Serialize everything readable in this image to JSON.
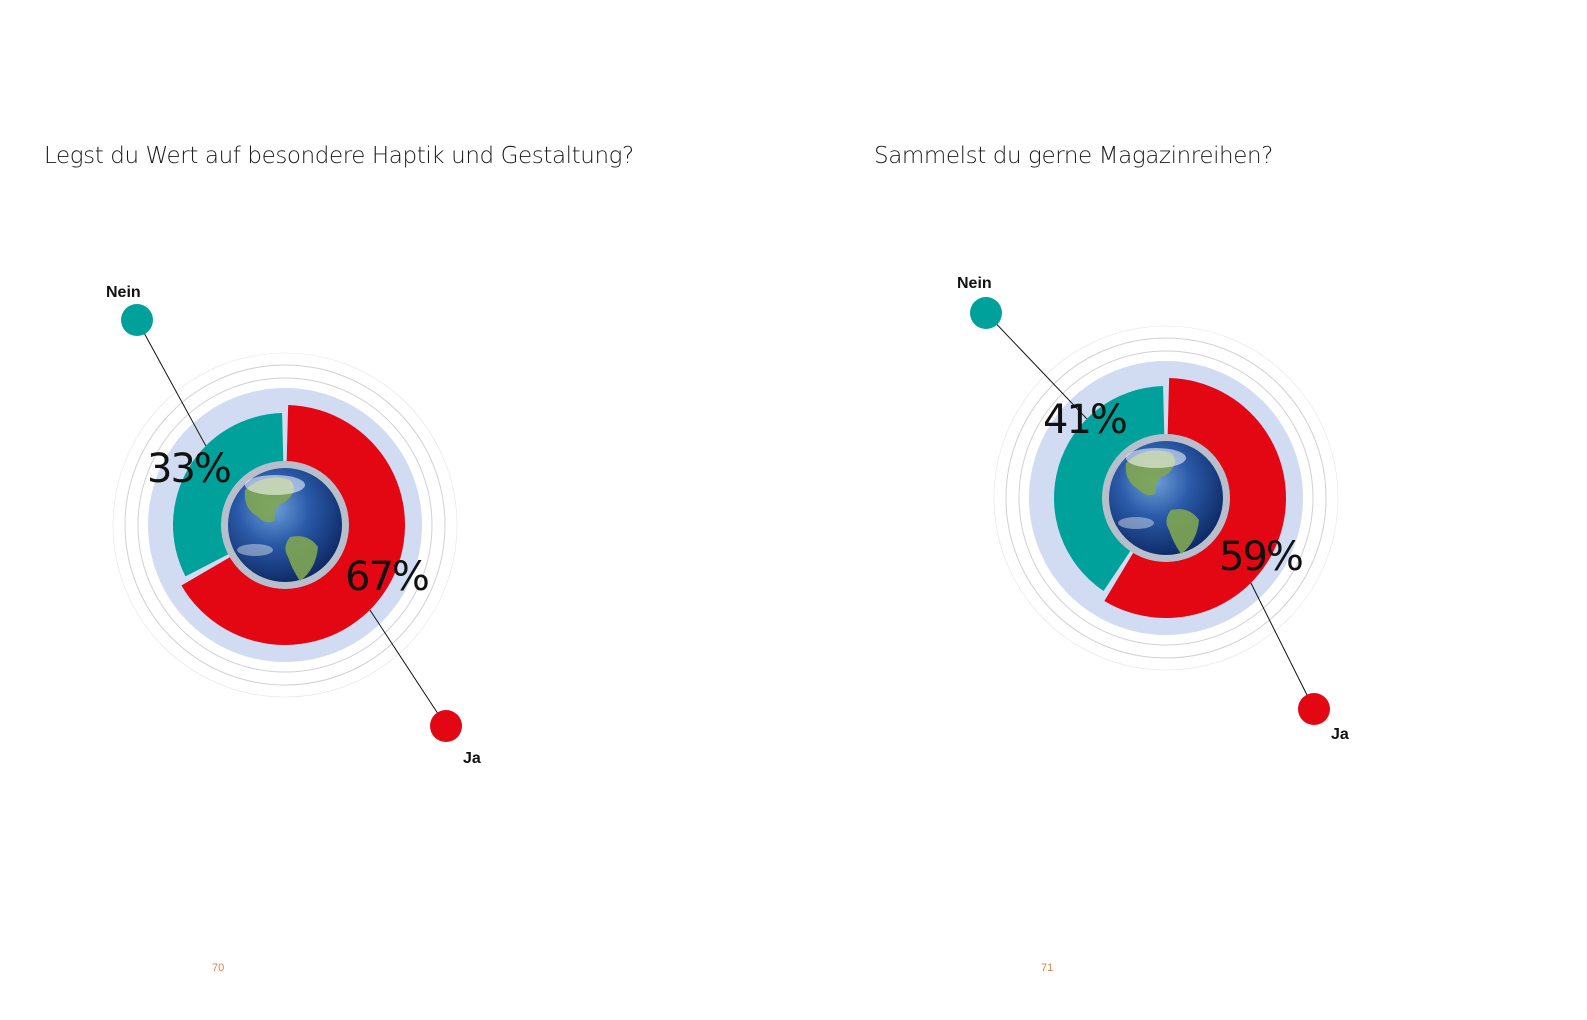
{
  "pages": [
    {
      "title": "Legst du Wert auf besondere Haptik und Gestaltung?",
      "page_number": "70"
    },
    {
      "title": "Sammelst du gerne Magazinreihen?",
      "page_number": "71"
    }
  ],
  "colors": {
    "ja": "#e30613",
    "nein": "#00a19a",
    "halo": "#d1dcf2",
    "rings": "#cccccc",
    "page_number": "#d9804a"
  },
  "chart_data": [
    {
      "type": "pie",
      "variant": "donut",
      "title": "Legst du Wert auf besondere Haptik und Gestaltung?",
      "categories": [
        "Ja",
        "Nein"
      ],
      "values": [
        67,
        33
      ],
      "labels": [
        "67%",
        "33%"
      ],
      "center_icon": "earth-globe"
    },
    {
      "type": "pie",
      "variant": "donut",
      "title": "Sammelst du gerne Magazinreihen?",
      "categories": [
        "Ja",
        "Nein"
      ],
      "values": [
        59,
        41
      ],
      "labels": [
        "59%",
        "41%"
      ],
      "center_icon": "earth-globe"
    }
  ]
}
